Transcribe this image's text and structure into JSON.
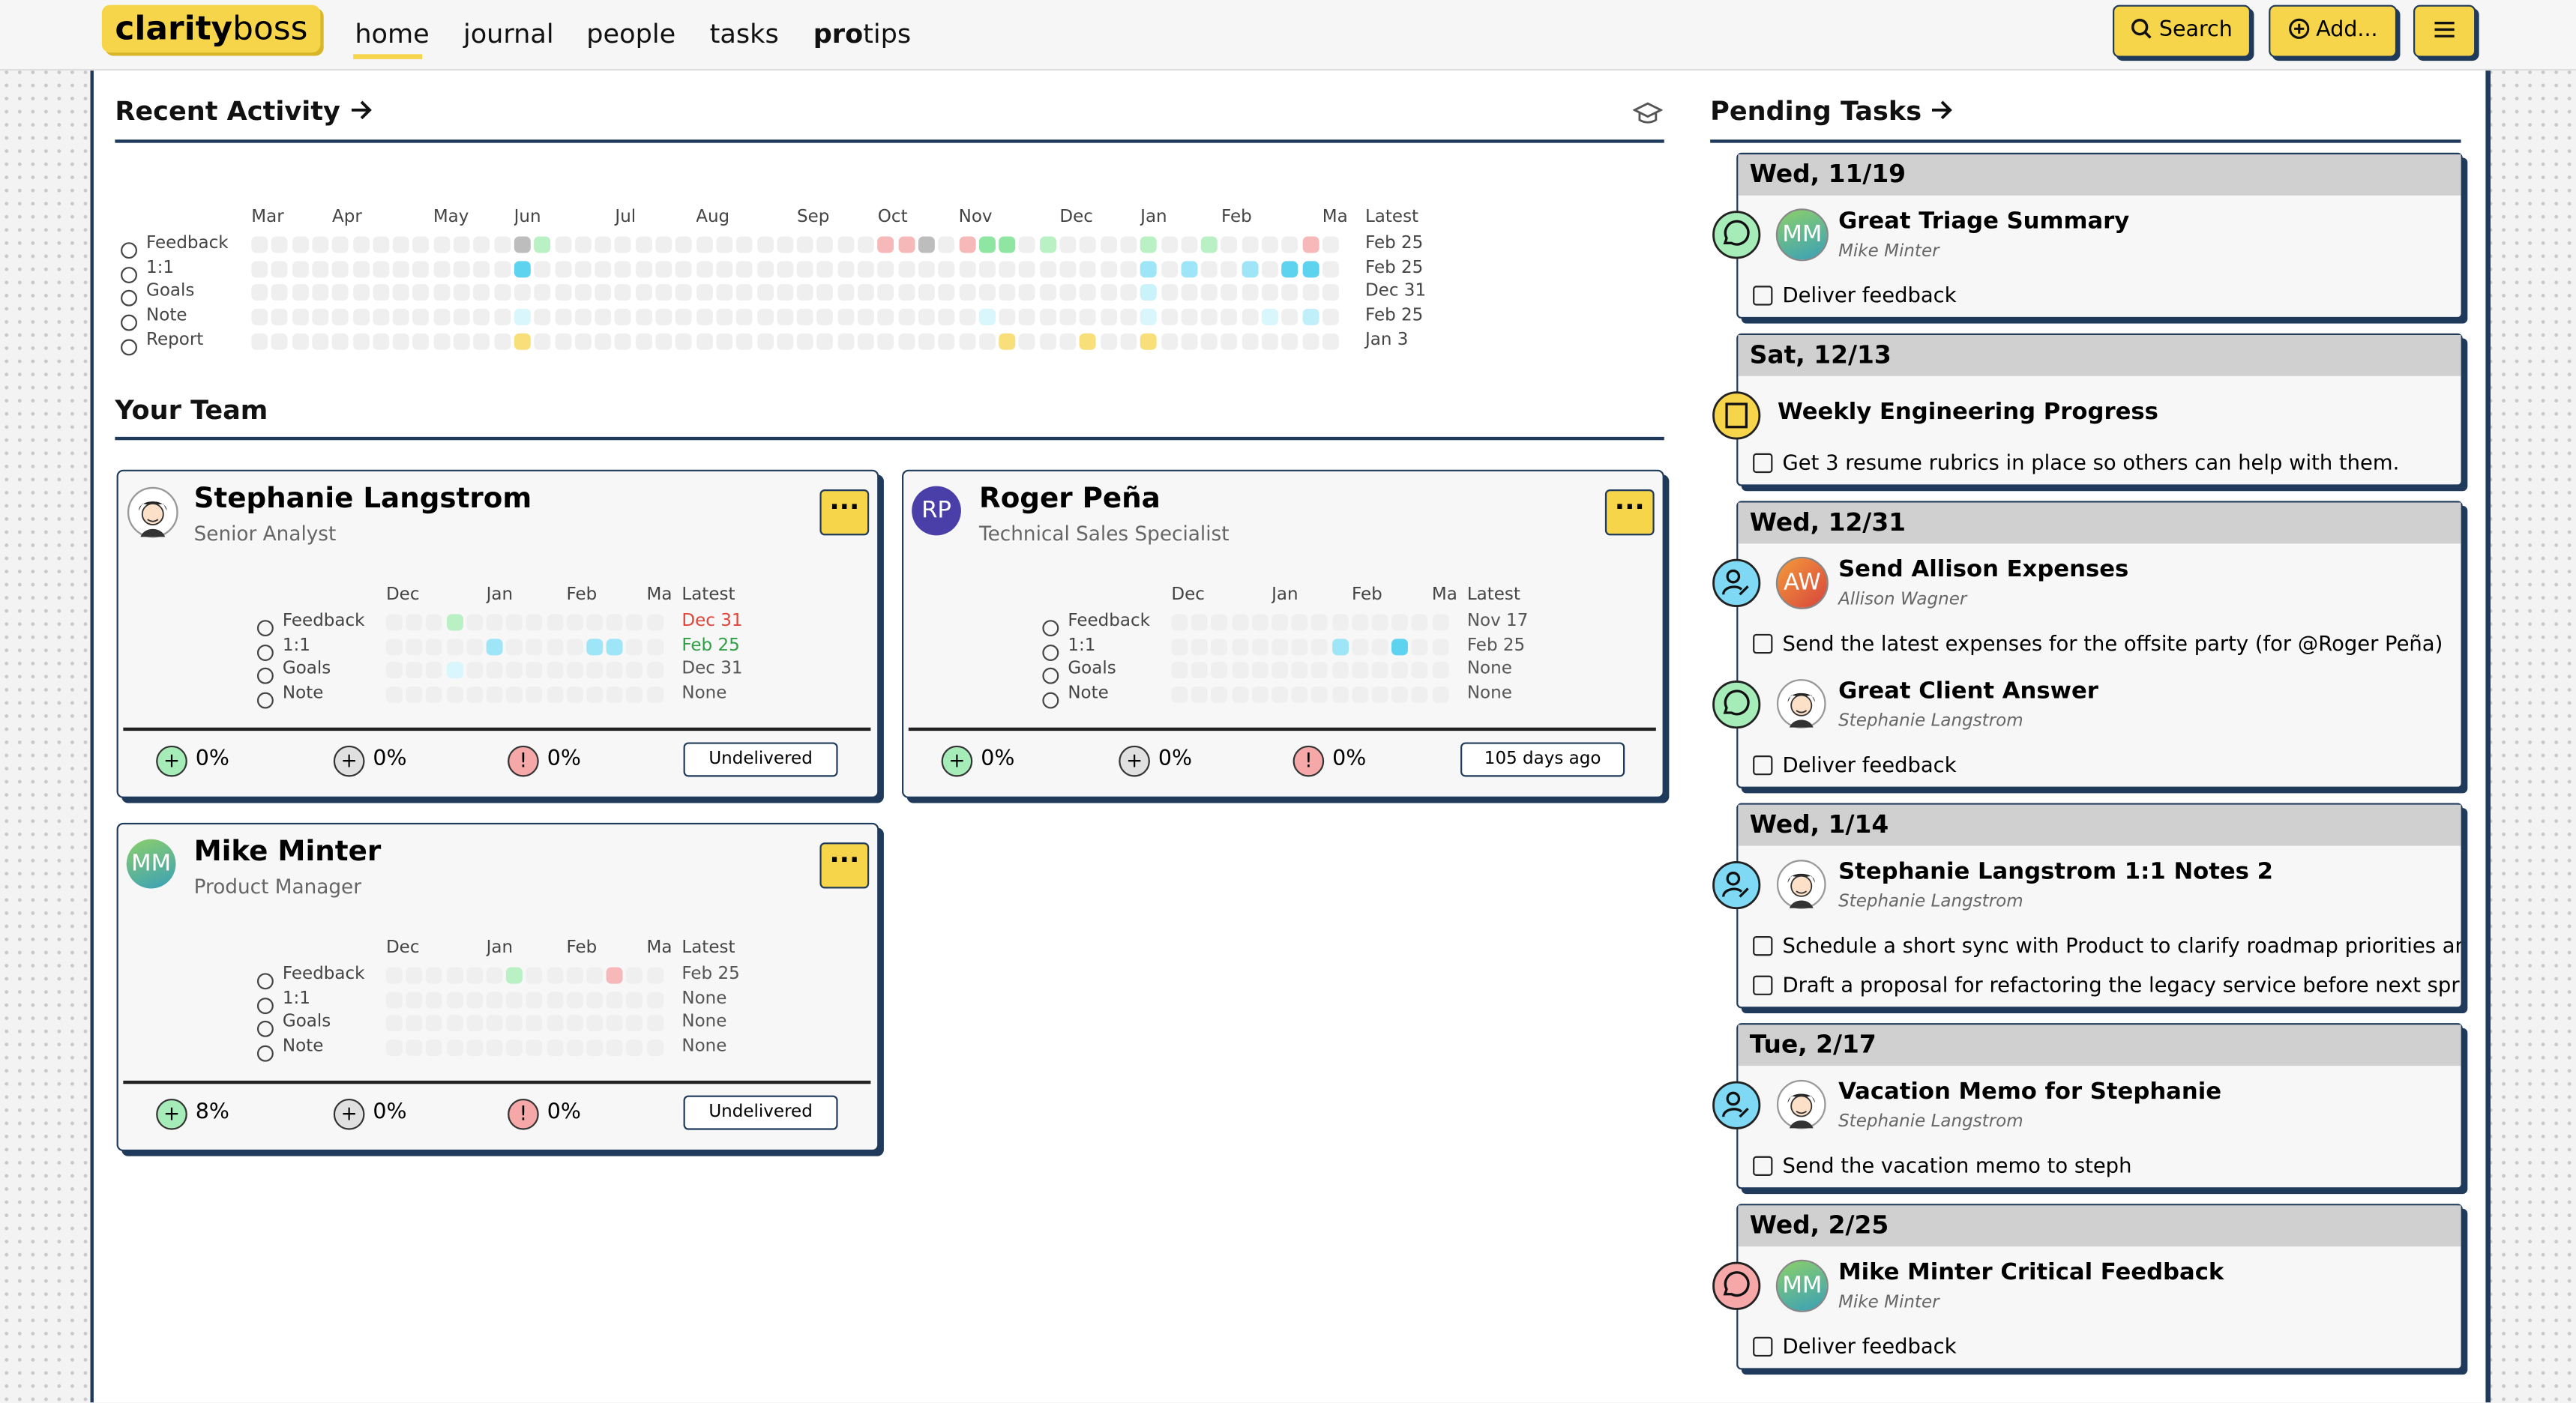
{
  "header": {
    "logo_bold": "clarity",
    "logo_rest": "boss",
    "nav": [
      "home",
      "journal",
      "people",
      "tasks"
    ],
    "protips_bold": "pro",
    "protips_rest": "tips",
    "search": "Search",
    "add": "Add..."
  },
  "recent_activity": {
    "title": "Recent Activity",
    "weeks": 54,
    "months": [
      "Mar",
      "Apr",
      "May",
      "Jun",
      "Jul",
      "Aug",
      "Sep",
      "Oct",
      "Nov",
      "Dec",
      "Jan",
      "Feb",
      "Ma"
    ],
    "latest_header": "Latest",
    "rows": [
      {
        "label": "Feedback",
        "latest": "Feb 25",
        "active": [
          {
            "week": 13,
            "color": "#bdbdbd"
          },
          {
            "week": 14,
            "color": "#b9f0c4"
          },
          {
            "week": 31,
            "color": "#f6b8b8"
          },
          {
            "week": 32,
            "color": "#f6b8b8"
          },
          {
            "week": 33,
            "color": "#bdbdbd"
          },
          {
            "week": 35,
            "color": "#f6b8b8"
          },
          {
            "week": 36,
            "color": "#8fe6a3"
          },
          {
            "week": 37,
            "color": "#8fe6a3"
          },
          {
            "week": 39,
            "color": "#b9f0c4"
          },
          {
            "week": 44,
            "color": "#b9f0c4"
          },
          {
            "week": 47,
            "color": "#b9f0c4"
          },
          {
            "week": 52,
            "color": "#f6b8b8"
          }
        ]
      },
      {
        "label": "1:1",
        "latest": "Feb 25",
        "active": [
          {
            "week": 13,
            "color": "#5ed3f0"
          },
          {
            "week": 44,
            "color": "#9ee6f7"
          },
          {
            "week": 46,
            "color": "#9ee6f7"
          },
          {
            "week": 49,
            "color": "#9ee6f7"
          },
          {
            "week": 51,
            "color": "#5ed3f0"
          },
          {
            "week": 52,
            "color": "#5ed3f0"
          }
        ]
      },
      {
        "label": "Goals",
        "latest": "Dec 31",
        "active": [
          {
            "week": 44,
            "color": "#c9f2fb"
          }
        ]
      },
      {
        "label": "Note",
        "latest": "Feb 25",
        "active": [
          {
            "week": 13,
            "color": "#d8f6fc"
          },
          {
            "week": 36,
            "color": "#d8f6fc"
          },
          {
            "week": 44,
            "color": "#d8f6fc"
          },
          {
            "week": 50,
            "color": "#d8f6fc"
          },
          {
            "week": 52,
            "color": "#c0effa"
          }
        ]
      },
      {
        "label": "Report",
        "latest": "Jan 3",
        "active": [
          {
            "week": 13,
            "color": "#f8df7a"
          },
          {
            "week": 37,
            "color": "#f8df7a"
          },
          {
            "week": 41,
            "color": "#f8df7a"
          },
          {
            "week": 44,
            "color": "#f8df7a"
          }
        ]
      }
    ]
  },
  "team": {
    "title": "Your Team",
    "weeks": 14,
    "months": [
      "Dec",
      "Jan",
      "Feb",
      "Ma"
    ],
    "latest_header": "Latest",
    "members": [
      {
        "name": "Stephanie Langstrom",
        "role": "Senior Analyst",
        "avatar": "",
        "stats": [
          "0%",
          "0%",
          "0%"
        ],
        "badge": "Undelivered",
        "rows": [
          {
            "label": "Feedback",
            "latest": "Dec 31",
            "latest_color": "#e0443a",
            "active": [
              {
                "week": 3,
                "color": "#b9f0c4"
              }
            ]
          },
          {
            "label": "1:1",
            "latest": "Feb 25",
            "latest_color": "#2ea043",
            "active": [
              {
                "week": 5,
                "color": "#9ee6f7"
              },
              {
                "week": 10,
                "color": "#9ee6f7"
              },
              {
                "week": 11,
                "color": "#9ee6f7"
              }
            ]
          },
          {
            "label": "Goals",
            "latest": "Dec 31",
            "latest_color": "#555",
            "active": [
              {
                "week": 3,
                "color": "#d8f6fc"
              }
            ]
          },
          {
            "label": "Note",
            "latest": "None",
            "latest_color": "#555",
            "active": []
          }
        ]
      },
      {
        "name": "Roger Peña",
        "role": "Technical Sales Specialist",
        "avatar": "RP",
        "stats": [
          "0%",
          "0%",
          "0%"
        ],
        "badge": "105 days ago",
        "rows": [
          {
            "label": "Feedback",
            "latest": "Nov 17",
            "latest_color": "#555",
            "active": []
          },
          {
            "label": "1:1",
            "latest": "Feb 25",
            "latest_color": "#555",
            "active": [
              {
                "week": 8,
                "color": "#9ee6f7"
              },
              {
                "week": 11,
                "color": "#5ed3f0"
              }
            ]
          },
          {
            "label": "Goals",
            "latest": "None",
            "latest_color": "#555",
            "active": []
          },
          {
            "label": "Note",
            "latest": "None",
            "latest_color": "#555",
            "active": []
          }
        ]
      },
      {
        "name": "Mike Minter",
        "role": "Product Manager",
        "avatar": "MM",
        "stats": [
          "8%",
          "0%",
          "0%"
        ],
        "badge": "Undelivered",
        "rows": [
          {
            "label": "Feedback",
            "latest": "Feb 25",
            "latest_color": "#555",
            "active": [
              {
                "week": 6,
                "color": "#b9f0c4"
              },
              {
                "week": 11,
                "color": "#f6b8b8"
              }
            ]
          },
          {
            "label": "1:1",
            "latest": "None",
            "latest_color": "#555",
            "active": []
          },
          {
            "label": "Goals",
            "latest": "None",
            "latest_color": "#555",
            "active": []
          },
          {
            "label": "Note",
            "latest": "None",
            "latest_color": "#555",
            "active": []
          }
        ]
      }
    ]
  },
  "pending": {
    "title": "Pending Tasks",
    "groups": [
      {
        "date": "Wed, 11/19",
        "tasks": [
          {
            "kind": "feedback-pos",
            "avatar": "MM",
            "title": "Great Triage Summary",
            "person": "Mike Minter",
            "items": [
              "Deliver feedback"
            ]
          }
        ]
      },
      {
        "date": "Sat, 12/13",
        "tasks": [
          {
            "kind": "report",
            "avatar": "",
            "title": "Weekly Engineering Progress",
            "person": "",
            "items": [
              "Get 3 resume rubrics in place so others can help with them."
            ]
          }
        ]
      },
      {
        "date": "Wed, 12/31",
        "tasks": [
          {
            "kind": "oneonone",
            "avatar": "AW",
            "title": "Send Allison Expenses",
            "person": "Allison Wagner",
            "items": [
              "Send the latest expenses for the offsite party (for @Roger Peña)"
            ]
          },
          {
            "kind": "feedback-pos",
            "avatar": "face",
            "title": "Great Client Answer",
            "person": "Stephanie Langstrom",
            "items": [
              "Deliver feedback"
            ]
          }
        ]
      },
      {
        "date": "Wed, 1/14",
        "tasks": [
          {
            "kind": "oneonone",
            "avatar": "face",
            "title": "Stephanie Langstrom 1:1 Notes 2",
            "person": "Stephanie Langstrom",
            "items": [
              "Schedule a short sync with Product to clarify roadmap priorities and trai...",
              "Draft a proposal for refactoring the legacy service before next sprint"
            ]
          }
        ]
      },
      {
        "date": "Tue, 2/17",
        "tasks": [
          {
            "kind": "oneonone",
            "avatar": "face",
            "title": "Vacation Memo for Stephanie",
            "person": "Stephanie Langstrom",
            "items": [
              "Send the vacation memo to steph"
            ]
          }
        ]
      },
      {
        "date": "Wed, 2/25",
        "tasks": [
          {
            "kind": "feedback-neg",
            "avatar": "MM",
            "title": "Mike Minter Critical Feedback",
            "person": "Mike Minter",
            "items": [
              "Deliver feedback"
            ]
          }
        ]
      }
    ]
  }
}
